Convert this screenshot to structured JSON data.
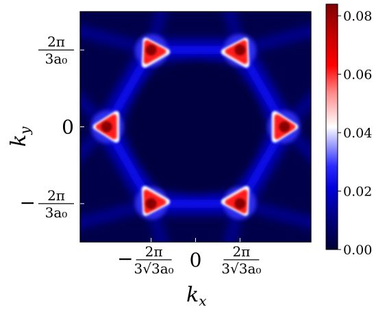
{
  "chart_data": {
    "type": "heatmap",
    "title": "",
    "xlabel": "k",
    "xlabel_sub": "x",
    "ylabel": "k",
    "ylabel_sub": "y",
    "x_ticks": [
      {
        "sign": "−",
        "numerator": "2π",
        "denominator": "3√3a₀",
        "value": -1.209
      },
      {
        "sign": "",
        "numerator": "",
        "denominator": "",
        "text": "0",
        "value": 0
      },
      {
        "sign": "",
        "numerator": "2π",
        "denominator": "3√3a₀",
        "value": 1.209
      }
    ],
    "y_ticks": [
      {
        "sign": "",
        "numerator": "2π",
        "denominator": "3a₀",
        "value": 2.094
      },
      {
        "sign": "",
        "numerator": "",
        "denominator": "",
        "text": "0",
        "value": 0
      },
      {
        "sign": "−",
        "numerator": "2π",
        "denominator": "3a₀",
        "value": -2.094
      }
    ],
    "xlim": [
      -3.14,
      3.14
    ],
    "ylim": [
      -3.14,
      3.14
    ],
    "colormap": "seismic",
    "colorbar": {
      "range": [
        0,
        0.084
      ],
      "ticks": [
        "0.00",
        "0.02",
        "0.04",
        "0.06",
        "0.08"
      ],
      "tick_values": [
        0,
        0.02,
        0.04,
        0.06,
        0.08
      ]
    },
    "hotspots": [
      {
        "kx": -1.209,
        "ky": 2.094,
        "peak": 0.084
      },
      {
        "kx": 1.209,
        "ky": 2.094,
        "peak": 0.084
      },
      {
        "kx": -2.418,
        "ky": 0,
        "peak": 0.084
      },
      {
        "kx": 2.418,
        "ky": 0,
        "peak": 0.084
      },
      {
        "kx": -1.209,
        "ky": -2.094,
        "peak": 0.084
      },
      {
        "kx": 1.209,
        "ky": -2.094,
        "peak": 0.084
      }
    ],
    "colors": {
      "low": "#000033",
      "mid": "#ffffff",
      "high": "#800000",
      "blue": "#0000ff",
      "red": "#ff0000"
    }
  }
}
